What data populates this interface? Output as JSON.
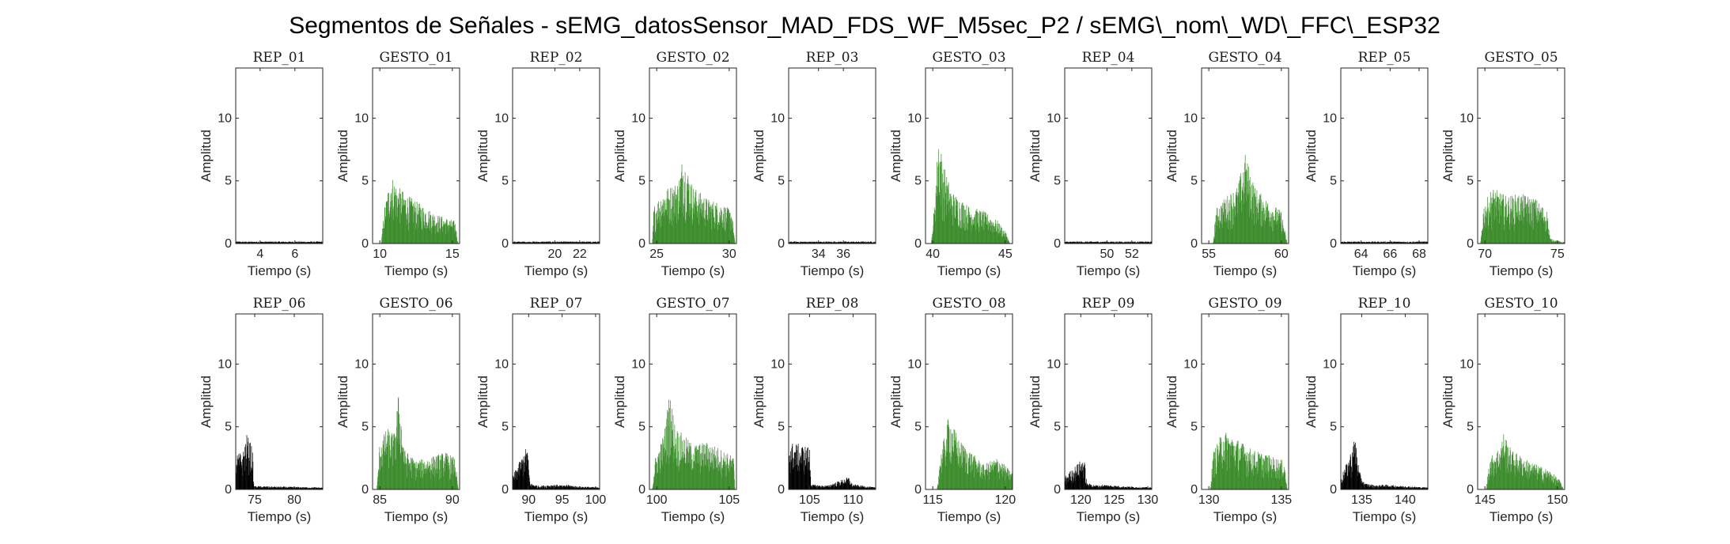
{
  "figure": {
    "title": "Segmentos de Señales - sEMG_datosSensor_MAD_FDS_WF_M5sec_P2 / sEMG\\_nom\\_WD\\_FFC\\_ESP32"
  },
  "colors": {
    "rep": "#000000",
    "gesto": "#3c8c2c",
    "axis": "#262626"
  },
  "chart_data": [
    {
      "type": "bar",
      "title": "REP_01",
      "xlabel": "Tiempo (s)",
      "ylabel": "Amplitud",
      "xlim": [
        2.6,
        7.6
      ],
      "ylim": [
        0,
        14
      ],
      "xticks": [
        4,
        6
      ],
      "yticks": [
        0,
        5,
        10
      ],
      "color": "#000000",
      "envelope": [
        [
          2.6,
          0.12
        ],
        [
          7.6,
          0.12
        ]
      ]
    },
    {
      "type": "bar",
      "title": "GESTO_01",
      "xlabel": "Tiempo (s)",
      "ylabel": "Amplitud",
      "xlim": [
        9.5,
        15.5
      ],
      "ylim": [
        0,
        14
      ],
      "xticks": [
        10,
        15
      ],
      "yticks": [
        0,
        5,
        10
      ],
      "color": "#3c8c2c",
      "envelope": [
        [
          10.1,
          0
        ],
        [
          10.3,
          2.8
        ],
        [
          10.6,
          4.5
        ],
        [
          10.8,
          5.5
        ],
        [
          11.2,
          4.6
        ],
        [
          12,
          3.8
        ],
        [
          13,
          3.0
        ],
        [
          14,
          2.3
        ],
        [
          15.2,
          1.8
        ],
        [
          15.4,
          0
        ]
      ]
    },
    {
      "type": "bar",
      "title": "REP_02",
      "xlabel": "Tiempo (s)",
      "ylabel": "Amplitud",
      "xlim": [
        16.6,
        23.6
      ],
      "ylim": [
        0,
        14
      ],
      "xticks": [
        20,
        22
      ],
      "yticks": [
        0,
        5,
        10
      ],
      "color": "#000000",
      "envelope": [
        [
          16.6,
          0.12
        ],
        [
          23.6,
          0.12
        ]
      ]
    },
    {
      "type": "bar",
      "title": "GESTO_02",
      "xlabel": "Tiempo (s)",
      "ylabel": "Amplitud",
      "xlim": [
        24.5,
        30.5
      ],
      "ylim": [
        0,
        14
      ],
      "xticks": [
        25,
        30
      ],
      "yticks": [
        0,
        5,
        10
      ],
      "color": "#3c8c2c",
      "envelope": [
        [
          24.7,
          0
        ],
        [
          24.8,
          3.0
        ],
        [
          25.5,
          4.3
        ],
        [
          26.5,
          5.0
        ],
        [
          26.8,
          7.1
        ],
        [
          27.5,
          4.6
        ],
        [
          28.5,
          3.6
        ],
        [
          29.5,
          3.2
        ],
        [
          30.2,
          2.6
        ],
        [
          30.4,
          0
        ]
      ]
    },
    {
      "type": "bar",
      "title": "REP_03",
      "xlabel": "Tiempo (s)",
      "ylabel": "Amplitud",
      "xlim": [
        31.6,
        38.6
      ],
      "ylim": [
        0,
        14
      ],
      "xticks": [
        34,
        36
      ],
      "yticks": [
        0,
        5,
        10
      ],
      "color": "#000000",
      "envelope": [
        [
          31.6,
          0.12
        ],
        [
          38.6,
          0.12
        ]
      ]
    },
    {
      "type": "bar",
      "title": "GESTO_03",
      "xlabel": "Tiempo (s)",
      "ylabel": "Amplitud",
      "xlim": [
        39.5,
        45.5
      ],
      "ylim": [
        0,
        14
      ],
      "xticks": [
        40,
        45
      ],
      "yticks": [
        0,
        5,
        10
      ],
      "color": "#3c8c2c",
      "envelope": [
        [
          39.9,
          0
        ],
        [
          40.1,
          3.0
        ],
        [
          40.4,
          9.0
        ],
        [
          40.7,
          6.5
        ],
        [
          41.3,
          4.2
        ],
        [
          42.5,
          3.0
        ],
        [
          43.5,
          2.6
        ],
        [
          44.5,
          1.8
        ],
        [
          45.1,
          0.8
        ],
        [
          45.3,
          0
        ]
      ]
    },
    {
      "type": "bar",
      "title": "REP_04",
      "xlabel": "Tiempo (s)",
      "ylabel": "Amplitud",
      "xlim": [
        46.6,
        53.6
      ],
      "ylim": [
        0,
        14
      ],
      "xticks": [
        50,
        52
      ],
      "yticks": [
        0,
        5,
        10
      ],
      "color": "#000000",
      "envelope": [
        [
          46.6,
          0.12
        ],
        [
          53.6,
          0.12
        ]
      ]
    },
    {
      "type": "bar",
      "title": "GESTO_04",
      "xlabel": "Tiempo (s)",
      "ylabel": "Amplitud",
      "xlim": [
        54.5,
        60.5
      ],
      "ylim": [
        0,
        14
      ],
      "xticks": [
        55,
        60
      ],
      "yticks": [
        0,
        5,
        10
      ],
      "color": "#3c8c2c",
      "envelope": [
        [
          55.3,
          0
        ],
        [
          55.5,
          2.8
        ],
        [
          56.2,
          3.8
        ],
        [
          57,
          4.6
        ],
        [
          57.5,
          7.2
        ],
        [
          58.2,
          4.5
        ],
        [
          59,
          3.5
        ],
        [
          60,
          2.6
        ],
        [
          60.4,
          0
        ]
      ]
    },
    {
      "type": "bar",
      "title": "REP_05",
      "xlabel": "Tiempo (s)",
      "ylabel": "Amplitud",
      "xlim": [
        62.6,
        68.6
      ],
      "ylim": [
        0,
        14
      ],
      "xticks": [
        64,
        66,
        68
      ],
      "yticks": [
        0,
        5,
        10
      ],
      "color": "#000000",
      "envelope": [
        [
          62.6,
          0.12
        ],
        [
          68.6,
          0.12
        ]
      ]
    },
    {
      "type": "bar",
      "title": "GESTO_05",
      "xlabel": "Tiempo (s)",
      "ylabel": "Amplitud",
      "xlim": [
        69.5,
        75.5
      ],
      "ylim": [
        0,
        14
      ],
      "xticks": [
        70,
        75
      ],
      "yticks": [
        0,
        5,
        10
      ],
      "color": "#3c8c2c",
      "envelope": [
        [
          69.7,
          0
        ],
        [
          69.9,
          3.0
        ],
        [
          70.5,
          4.5
        ],
        [
          71.5,
          3.8
        ],
        [
          72.5,
          4.0
        ],
        [
          73.5,
          3.6
        ],
        [
          74.3,
          2.6
        ],
        [
          74.5,
          0.3
        ],
        [
          75.3,
          0.1
        ]
      ]
    },
    {
      "type": "bar",
      "title": "REP_06",
      "xlabel": "Tiempo (s)",
      "ylabel": "Amplitud",
      "xlim": [
        72.6,
        83.6
      ],
      "ylim": [
        0,
        14
      ],
      "xticks": [
        75,
        80
      ],
      "yticks": [
        0,
        5,
        10
      ],
      "color": "#000000",
      "envelope": [
        [
          72.6,
          2.8
        ],
        [
          73.5,
          3.0
        ],
        [
          74,
          4.4
        ],
        [
          74.7,
          3.5
        ],
        [
          74.9,
          0.2
        ],
        [
          83.6,
          0.12
        ]
      ]
    },
    {
      "type": "bar",
      "title": "GESTO_06",
      "xlabel": "Tiempo (s)",
      "ylabel": "Amplitud",
      "xlim": [
        84.5,
        90.5
      ],
      "ylim": [
        0,
        14
      ],
      "xticks": [
        85,
        90
      ],
      "yticks": [
        0,
        5,
        10
      ],
      "color": "#3c8c2c",
      "envelope": [
        [
          84.8,
          0
        ],
        [
          85,
          3.8
        ],
        [
          85.5,
          4.9
        ],
        [
          86,
          4.5
        ],
        [
          86.3,
          7.8
        ],
        [
          86.7,
          3.2
        ],
        [
          87.5,
          2.3
        ],
        [
          88.5,
          2.6
        ],
        [
          89.5,
          3.0
        ],
        [
          90.2,
          2.5
        ],
        [
          90.4,
          0
        ]
      ]
    },
    {
      "type": "bar",
      "title": "REP_07",
      "xlabel": "Tiempo (s)",
      "ylabel": "Amplitud",
      "xlim": [
        87.6,
        100.6
      ],
      "ylim": [
        0,
        14
      ],
      "xticks": [
        90,
        95,
        100
      ],
      "yticks": [
        0,
        5,
        10
      ],
      "color": "#000000",
      "envelope": [
        [
          87.6,
          1.0
        ],
        [
          88.2,
          1.8
        ],
        [
          89,
          2.6
        ],
        [
          89.8,
          3.6
        ],
        [
          90.2,
          0.5
        ],
        [
          91.5,
          0.3
        ],
        [
          94,
          0.4
        ],
        [
          97,
          0.2
        ],
        [
          100.6,
          0.12
        ]
      ]
    },
    {
      "type": "bar",
      "title": "GESTO_07",
      "xlabel": "Tiempo (s)",
      "ylabel": "Amplitud",
      "xlim": [
        99.5,
        105.5
      ],
      "ylim": [
        0,
        14
      ],
      "xticks": [
        100,
        105
      ],
      "yticks": [
        0,
        5,
        10
      ],
      "color": "#3c8c2c",
      "envelope": [
        [
          99.7,
          0
        ],
        [
          99.9,
          2.5
        ],
        [
          100.5,
          4.5
        ],
        [
          100.9,
          7.9
        ],
        [
          101.3,
          5.0
        ],
        [
          102.5,
          3.6
        ],
        [
          103.5,
          3.8
        ],
        [
          104.5,
          3.2
        ],
        [
          105.3,
          2.6
        ],
        [
          105.4,
          0
        ]
      ]
    },
    {
      "type": "bar",
      "title": "REP_08",
      "xlabel": "Tiempo (s)",
      "ylabel": "Amplitud",
      "xlim": [
        102.6,
        112.6
      ],
      "ylim": [
        0,
        14
      ],
      "xticks": [
        105,
        110
      ],
      "yticks": [
        0,
        5,
        10
      ],
      "color": "#000000",
      "envelope": [
        [
          102.6,
          3.8
        ],
        [
          104,
          3.6
        ],
        [
          105,
          3.4
        ],
        [
          105.2,
          0.4
        ],
        [
          107,
          0.3
        ],
        [
          109.5,
          1.0
        ],
        [
          110,
          0.3
        ],
        [
          112.6,
          0.12
        ]
      ]
    },
    {
      "type": "bar",
      "title": "GESTO_08",
      "xlabel": "Tiempo (s)",
      "ylabel": "Amplitud",
      "xlim": [
        114.5,
        120.5
      ],
      "ylim": [
        0,
        14
      ],
      "xticks": [
        115,
        120
      ],
      "yticks": [
        0,
        5,
        10
      ],
      "color": "#3c8c2c",
      "envelope": [
        [
          115.3,
          0
        ],
        [
          115.5,
          2.5
        ],
        [
          116.1,
          6.0
        ],
        [
          116.8,
          4.0
        ],
        [
          117.5,
          3.2
        ],
        [
          118.5,
          2.0
        ],
        [
          119.5,
          2.6
        ],
        [
          120.4,
          1.4
        ]
      ]
    },
    {
      "type": "bar",
      "title": "REP_09",
      "xlabel": "Tiempo (s)",
      "ylabel": "Amplitud",
      "xlim": [
        117.6,
        130.6
      ],
      "ylim": [
        0,
        14
      ],
      "xticks": [
        120,
        125,
        130
      ],
      "yticks": [
        0,
        5,
        10
      ],
      "color": "#000000",
      "envelope": [
        [
          117.6,
          1.0
        ],
        [
          119,
          1.8
        ],
        [
          120.5,
          2.6
        ],
        [
          120.9,
          0.5
        ],
        [
          123,
          0.3
        ],
        [
          126,
          0.2
        ],
        [
          130.6,
          0.12
        ]
      ]
    },
    {
      "type": "bar",
      "title": "GESTO_09",
      "xlabel": "Tiempo (s)",
      "ylabel": "Amplitud",
      "xlim": [
        129.5,
        135.5
      ],
      "ylim": [
        0,
        14
      ],
      "xticks": [
        130,
        135
      ],
      "yticks": [
        0,
        5,
        10
      ],
      "color": "#3c8c2c",
      "envelope": [
        [
          130.1,
          0
        ],
        [
          130.3,
          3.0
        ],
        [
          131,
          4.8
        ],
        [
          132,
          4.0
        ],
        [
          133,
          3.2
        ],
        [
          134,
          2.8
        ],
        [
          135.2,
          2.3
        ],
        [
          135.4,
          0
        ]
      ]
    },
    {
      "type": "bar",
      "title": "REP_10",
      "xlabel": "Tiempo (s)",
      "ylabel": "Amplitud",
      "xlim": [
        132.6,
        142.6
      ],
      "ylim": [
        0,
        14
      ],
      "xticks": [
        135,
        140
      ],
      "yticks": [
        0,
        5,
        10
      ],
      "color": "#000000",
      "envelope": [
        [
          132.6,
          1.0
        ],
        [
          133.5,
          2.5
        ],
        [
          134.3,
          4.3
        ],
        [
          134.7,
          1.5
        ],
        [
          135.3,
          0.5
        ],
        [
          137,
          0.3
        ],
        [
          142.6,
          0.12
        ]
      ]
    },
    {
      "type": "bar",
      "title": "GESTO_10",
      "xlabel": "Tiempo (s)",
      "ylabel": "Amplitud",
      "xlim": [
        144.5,
        150.5
      ],
      "ylim": [
        0,
        14
      ],
      "xticks": [
        145,
        150
      ],
      "yticks": [
        0,
        5,
        10
      ],
      "color": "#3c8c2c",
      "envelope": [
        [
          145.1,
          0
        ],
        [
          145.3,
          2.5
        ],
        [
          146,
          3.4
        ],
        [
          146.3,
          4.6
        ],
        [
          146.8,
          3.2
        ],
        [
          148,
          2.3
        ],
        [
          149.5,
          1.5
        ],
        [
          150.2,
          0.7
        ],
        [
          150.4,
          0
        ]
      ]
    }
  ]
}
